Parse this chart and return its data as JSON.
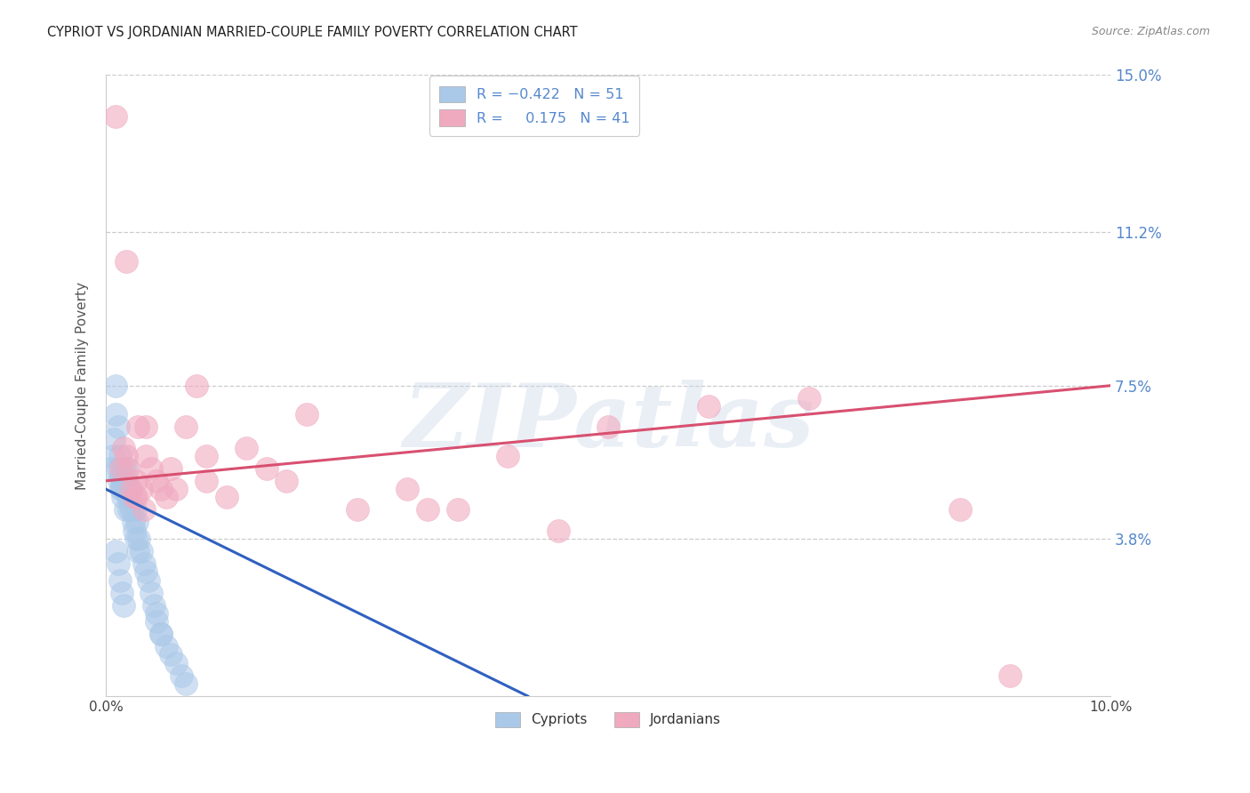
{
  "title": "CYPRIOT VS JORDANIAN MARRIED-COUPLE FAMILY POVERTY CORRELATION CHART",
  "source": "Source: ZipAtlas.com",
  "ylabel": "Married-Couple Family Poverty",
  "xlim": [
    0,
    10.0
  ],
  "ylim": [
    0,
    15.0
  ],
  "xtick_positions": [
    0,
    2,
    4,
    6,
    8,
    10
  ],
  "xtick_labels": [
    "0.0%",
    "",
    "",
    "",
    "",
    "10.0%"
  ],
  "ytick_vals": [
    3.8,
    7.5,
    11.2,
    15.0
  ],
  "ytick_labels": [
    "3.8%",
    "7.5%",
    "11.2%",
    "15.0%"
  ],
  "blue_fill": "#aac8e8",
  "pink_fill": "#f0aac0",
  "blue_line": "#3060c0",
  "pink_line": "#d85070",
  "title_color": "#222222",
  "source_color": "#888888",
  "ytick_color": "#5588cc",
  "watermark": "ZIPatlas",
  "R_blue": -0.422,
  "N_blue": 51,
  "R_pink": 0.175,
  "N_pink": 41,
  "grid_color": "#cccccc",
  "spine_color": "#cccccc",
  "blue_x": [
    0.05,
    0.07,
    0.08,
    0.1,
    0.1,
    0.12,
    0.12,
    0.13,
    0.14,
    0.15,
    0.15,
    0.16,
    0.17,
    0.18,
    0.18,
    0.19,
    0.2,
    0.2,
    0.21,
    0.22,
    0.23,
    0.24,
    0.25,
    0.26,
    0.27,
    0.28,
    0.29,
    0.3,
    0.31,
    0.32,
    0.33,
    0.35,
    0.38,
    0.4,
    0.42,
    0.45,
    0.48,
    0.5,
    0.55,
    0.6,
    0.65,
    0.7,
    0.75,
    0.8,
    0.1,
    0.12,
    0.14,
    0.16,
    0.18,
    0.5,
    0.55
  ],
  "blue_y": [
    5.5,
    5.8,
    6.2,
    7.5,
    6.8,
    6.5,
    5.5,
    5.2,
    5.8,
    5.0,
    5.3,
    5.1,
    4.8,
    5.5,
    5.0,
    4.5,
    5.2,
    5.5,
    5.0,
    4.8,
    4.5,
    5.0,
    4.8,
    4.5,
    4.2,
    4.0,
    4.5,
    3.8,
    4.2,
    3.5,
    3.8,
    3.5,
    3.2,
    3.0,
    2.8,
    2.5,
    2.2,
    2.0,
    1.5,
    1.2,
    1.0,
    0.8,
    0.5,
    0.3,
    3.5,
    3.2,
    2.8,
    2.5,
    2.2,
    1.8,
    1.5
  ],
  "pink_x": [
    0.1,
    0.15,
    0.18,
    0.2,
    0.22,
    0.25,
    0.28,
    0.3,
    0.32,
    0.35,
    0.38,
    0.4,
    0.45,
    0.5,
    0.55,
    0.6,
    0.65,
    0.7,
    0.8,
    0.9,
    1.0,
    1.2,
    1.4,
    1.6,
    1.8,
    2.0,
    2.5,
    3.0,
    3.5,
    4.0,
    5.0,
    6.0,
    7.0,
    8.5,
    0.2,
    0.4,
    1.0,
    3.2,
    4.5,
    0.3,
    9.0
  ],
  "pink_y": [
    14.0,
    5.5,
    6.0,
    5.8,
    5.5,
    5.0,
    4.8,
    5.2,
    6.5,
    5.0,
    4.5,
    5.8,
    5.5,
    5.2,
    5.0,
    4.8,
    5.5,
    5.0,
    6.5,
    7.5,
    5.8,
    4.8,
    6.0,
    5.5,
    5.2,
    6.8,
    4.5,
    5.0,
    4.5,
    5.8,
    6.5,
    7.0,
    7.2,
    4.5,
    10.5,
    6.5,
    5.2,
    4.5,
    4.0,
    4.8,
    0.5
  ],
  "blue_trend_x0": 0,
  "blue_trend_y0": 5.0,
  "blue_trend_x1": 4.2,
  "blue_trend_y1": 0.0,
  "pink_trend_x0": 0,
  "pink_trend_y0": 5.2,
  "pink_trend_x1": 10,
  "pink_trend_y1": 7.5
}
